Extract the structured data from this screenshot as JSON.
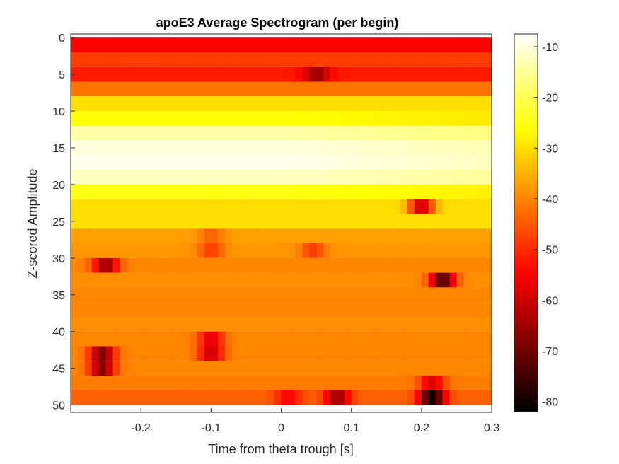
{
  "chart_data": {
    "type": "heatmap",
    "title": "apoE3 Average Spectrogram (per begin)",
    "xlabel": "Time from theta trough [s]",
    "ylabel": "Z-scored Amplitude",
    "xlim": [
      -0.3,
      0.3
    ],
    "ylim": [
      51,
      -0.5
    ],
    "y_direction": "reversed",
    "xticks": [
      -0.2,
      -0.1,
      0,
      0.1,
      0.2,
      0.3
    ],
    "xtick_labels": [
      "-0.2",
      "-0.1",
      "0",
      "0.1",
      "0.2",
      "0.3"
    ],
    "yticks": [
      0,
      5,
      10,
      15,
      20,
      25,
      30,
      35,
      40,
      45,
      50
    ],
    "ytick_labels": [
      "0",
      "5",
      "10",
      "15",
      "20",
      "25",
      "30",
      "35",
      "40",
      "45",
      "50"
    ],
    "colormap": "hot",
    "colorbar": {
      "limits": [
        -82,
        -7.5
      ],
      "ticks": [
        -10,
        -20,
        -30,
        -40,
        -50,
        -60,
        -70,
        -80
      ],
      "tick_labels": [
        "-10",
        "-20",
        "-30",
        "-40",
        "-50",
        "-60",
        "-70",
        "-80"
      ]
    },
    "row_centers": [
      1,
      3,
      5,
      7,
      9,
      11,
      13,
      15,
      17,
      19,
      21,
      23,
      25,
      27,
      29,
      31,
      33,
      35,
      37,
      39,
      41,
      43,
      45,
      47,
      49
    ],
    "row_base_values": [
      -55,
      -48,
      -52,
      -42,
      -30,
      -26,
      -14,
      -10,
      -9,
      -12,
      -25,
      -30,
      -30,
      -37,
      -38,
      -40,
      -39,
      -40,
      -40,
      -39,
      -40,
      -40,
      -40,
      -41,
      -44
    ],
    "dips": [
      {
        "row": 5,
        "x": 0.05,
        "value": -65
      },
      {
        "row": 23,
        "x": 0.2,
        "value": -60
      },
      {
        "row": 27,
        "x": -0.1,
        "value": -44
      },
      {
        "row": 29,
        "x": -0.1,
        "value": -48
      },
      {
        "row": 29,
        "x": 0.045,
        "value": -48
      },
      {
        "row": 31,
        "x": -0.25,
        "value": -65
      },
      {
        "row": 33,
        "x": 0.23,
        "value": -73
      },
      {
        "row": 41,
        "x": -0.1,
        "value": -58
      },
      {
        "row": 43,
        "x": -0.1,
        "value": -60
      },
      {
        "row": 43,
        "x": -0.255,
        "value": -68
      },
      {
        "row": 45,
        "x": -0.255,
        "value": -67
      },
      {
        "row": 47,
        "x": 0.215,
        "value": -58
      },
      {
        "row": 49,
        "x": 0.215,
        "value": -80
      },
      {
        "row": 49,
        "x": 0.01,
        "value": -55
      },
      {
        "row": 49,
        "x": 0.08,
        "value": -65
      }
    ]
  }
}
